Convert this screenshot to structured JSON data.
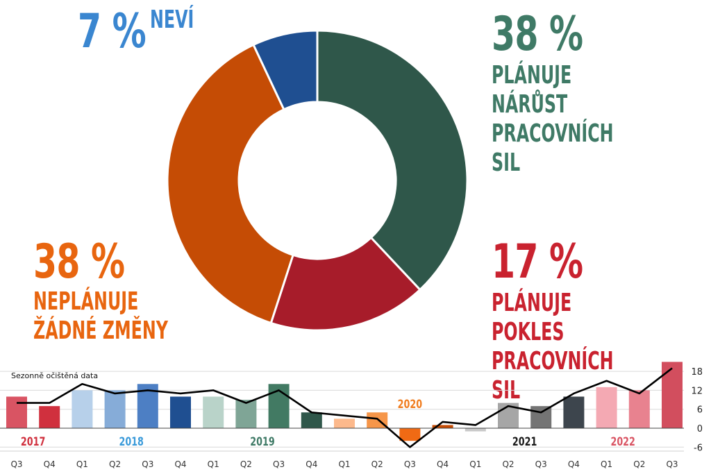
{
  "donut": {
    "slices": [
      {
        "pct": "38 %",
        "label": "PLÁNUJE NÁRŮST\nPRACOVNÍCH SIL",
        "value": 38,
        "color": "#2f574a",
        "textColor": "#3f7a66"
      },
      {
        "pct": "17 %",
        "label": "PLÁNUJE POKLES\nPRACOVNÍCH SIL",
        "value": 17,
        "color": "#a71c2a",
        "textColor": "#c9222f"
      },
      {
        "pct": "38 %",
        "label": "NEPLÁNUJE\nŽÁDNÉ ZMĚNY",
        "value": 38,
        "color": "#c54c05",
        "textColor": "#e8650f"
      },
      {
        "pct": "7 %",
        "label": "NEVÍ",
        "value": 7,
        "color": "#1f4f91",
        "textColor": "#3a86d0"
      }
    ]
  },
  "chart_data": {
    "type": "bar",
    "title": "Sezonně očištěná data",
    "categories": [
      "Q3",
      "Q4",
      "Q1",
      "Q2",
      "Q3",
      "Q4",
      "Q1",
      "Q2",
      "Q3",
      "Q4",
      "Q1",
      "Q2",
      "Q3",
      "Q4",
      "Q1",
      "Q2",
      "Q3",
      "Q4",
      "Q1",
      "Q2",
      "Q3"
    ],
    "values": [
      10,
      7,
      12,
      12,
      14,
      10,
      10,
      9,
      14,
      5,
      3,
      5,
      -4,
      1,
      -1,
      8,
      7,
      10,
      13,
      12,
      21
    ],
    "line": [
      8,
      8,
      14,
      11,
      12,
      11,
      12,
      8,
      12,
      5,
      4,
      3,
      -6,
      2,
      1,
      7,
      5,
      11,
      15,
      11,
      19
    ],
    "bar_colors": [
      "#d95463",
      "#d0303e",
      "#b7d0ea",
      "#86acd8",
      "#4d7fc4",
      "#1f4f91",
      "#b9d3c9",
      "#7fa596",
      "#427a63",
      "#2f574a",
      "#fcb98c",
      "#f69649",
      "#f06a14",
      "#c54c05",
      "#c8c8c8",
      "#a6a6a6",
      "#747474",
      "#3d454d",
      "#f4a9b3",
      "#e8828f",
      "#d24e5e"
    ],
    "year_labels": [
      {
        "text": "2017",
        "color": "#d0303e",
        "index": 0.5
      },
      {
        "text": "2018",
        "color": "#3a9ad9",
        "index": 3.5
      },
      {
        "text": "2019",
        "color": "#3f7a66",
        "index": 7.5
      },
      {
        "text": "2020",
        "color": "#f07c1e",
        "index": 12
      },
      {
        "text": "2021",
        "color": "#1a1a1a",
        "index": 15.5
      },
      {
        "text": "2022",
        "color": "#d95463",
        "index": 18.5
      }
    ],
    "y_ticks": [
      18,
      12,
      6,
      0,
      -6
    ],
    "ylim": [
      -7,
      22
    ]
  }
}
